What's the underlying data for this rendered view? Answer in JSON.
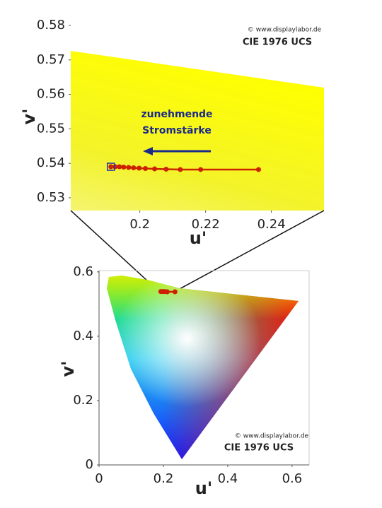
{
  "chart_data": [
    {
      "type": "line",
      "title": "CIE 1976 UCS",
      "credit": "© www.displaylabor.de",
      "annotation": [
        "zunehmende",
        "Stromstärke"
      ],
      "x_label": "u'",
      "y_label": "v'",
      "x": [
        0.1912,
        0.1925,
        0.1938,
        0.1951,
        0.1966,
        0.1981,
        0.1998,
        0.2017,
        0.2045,
        0.208,
        0.2123,
        0.2185,
        0.2361
      ],
      "values": [
        0.539,
        0.539,
        0.539,
        0.5389,
        0.5388,
        0.5387,
        0.5386,
        0.5385,
        0.5384,
        0.5383,
        0.5382,
        0.5382,
        0.5382
      ],
      "color": "#cc2200",
      "xlim": [
        0.179,
        0.256
      ],
      "ylim": [
        0.5263,
        0.58
      ],
      "xticks": [
        0.2,
        0.22,
        0.24
      ],
      "yticks": [
        0.53,
        0.54,
        0.55,
        0.56,
        0.57,
        0.58
      ]
    },
    {
      "type": "line",
      "title": "CIE 1976 UCS",
      "credit": "© www.displaylabor.de",
      "x_label": "u'",
      "y_label": "v'",
      "x": [
        0.192,
        0.198,
        0.204,
        0.212,
        0.236
      ],
      "values": [
        0.539,
        0.539,
        0.539,
        0.538,
        0.538
      ],
      "color": "#cc2200",
      "xlim": [
        0,
        0.653
      ],
      "ylim": [
        0,
        0.604
      ],
      "xticks": [
        0,
        0.2,
        0.4,
        0.6
      ],
      "yticks": [
        0,
        0.2,
        0.4,
        0.6
      ]
    }
  ]
}
